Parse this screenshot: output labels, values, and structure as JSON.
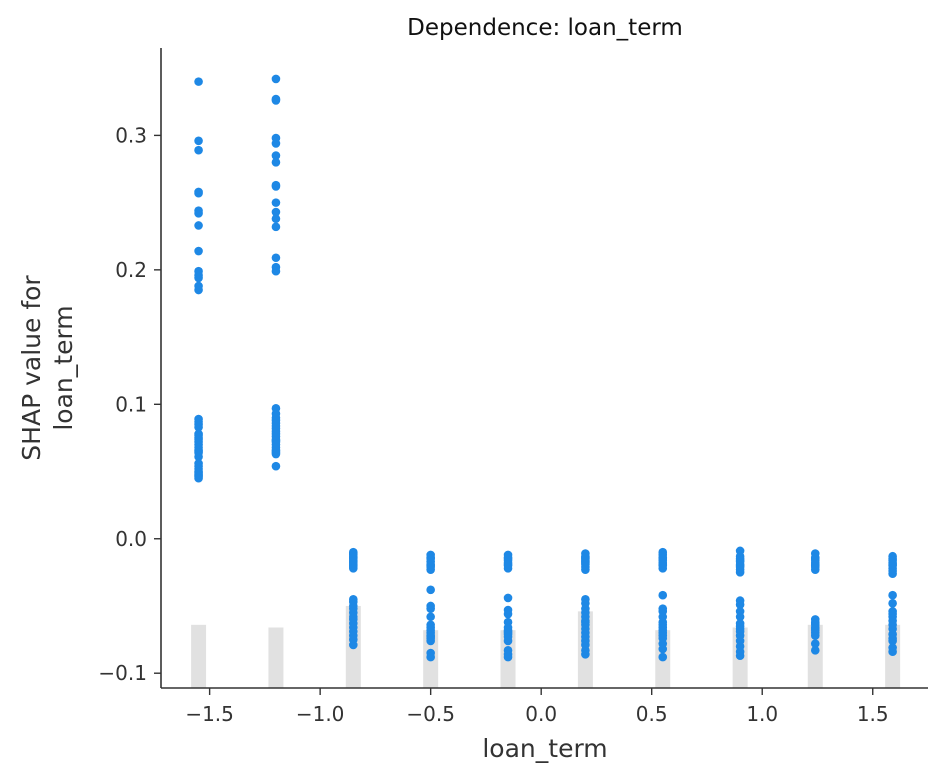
{
  "chart_data": {
    "type": "scatter",
    "title": "Dependence: loan_term",
    "xlabel": "loan_term",
    "ylabel": [
      "SHAP value for",
      "loan_term"
    ],
    "xlim": [
      -1.72,
      1.75
    ],
    "ylim": [
      -0.111,
      0.365
    ],
    "xticks": [
      -1.5,
      -1.0,
      -0.5,
      0.0,
      0.5,
      1.0,
      1.5
    ],
    "xtick_labels": [
      "−1.5",
      "−1.0",
      "−0.5",
      "0.0",
      "0.5",
      "1.0",
      "1.5"
    ],
    "yticks": [
      -0.1,
      0.0,
      0.1,
      0.2,
      0.3
    ],
    "ytick_labels": [
      "−0.1",
      "0.0",
      "0.1",
      "0.2",
      "0.3"
    ],
    "grid": false,
    "point_color": "#1e88e5",
    "hist_color": "#dcdcdc",
    "histogram": {
      "x": [
        -1.55,
        -1.2,
        -0.85,
        -0.5,
        -0.15,
        0.2,
        0.55,
        0.9,
        1.24,
        1.59
      ],
      "top": [
        -0.064,
        -0.066,
        -0.05,
        -0.068,
        -0.068,
        -0.054,
        -0.068,
        -0.066,
        -0.064,
        -0.064
      ]
    },
    "series": [
      {
        "x": [
          -1.55,
          -1.55,
          -1.55,
          -1.55,
          -1.55,
          -1.55,
          -1.55,
          -1.55,
          -1.55,
          -1.55,
          -1.55,
          -1.55,
          -1.55,
          -1.55,
          -1.55,
          -1.55,
          -1.55,
          -1.55,
          -1.55,
          -1.55,
          -1.55,
          -1.55,
          -1.55,
          -1.55,
          -1.55,
          -1.55,
          -1.55,
          -1.55,
          -1.55,
          -1.55,
          -1.55,
          -1.55,
          -1.55,
          -1.55,
          -1.55,
          -1.55,
          -1.55,
          -1.55
        ],
        "y": [
          0.34,
          0.296,
          0.289,
          0.258,
          0.257,
          0.244,
          0.242,
          0.233,
          0.214,
          0.199,
          0.196,
          0.194,
          0.188,
          0.185,
          0.089,
          0.087,
          0.085,
          0.083,
          0.078,
          0.077,
          0.075,
          0.074,
          0.072,
          0.07,
          0.068,
          0.066,
          0.065,
          0.064,
          0.056,
          0.054,
          0.052,
          0.05,
          0.049,
          0.048,
          0.047,
          0.046,
          0.045,
          0.061
        ]
      },
      {
        "x": [
          -1.2,
          -1.2,
          -1.2,
          -1.2,
          -1.2,
          -1.2,
          -1.2,
          -1.2,
          -1.2,
          -1.2,
          -1.2,
          -1.2,
          -1.2,
          -1.2,
          -1.2,
          -1.2,
          -1.2,
          -1.2,
          -1.2,
          -1.2,
          -1.2,
          -1.2,
          -1.2,
          -1.2,
          -1.2,
          -1.2,
          -1.2,
          -1.2,
          -1.2,
          -1.2,
          -1.2,
          -1.2,
          -1.2,
          -1.2,
          -1.2,
          -1.2
        ],
        "y": [
          0.342,
          0.327,
          0.326,
          0.298,
          0.294,
          0.285,
          0.28,
          0.263,
          0.262,
          0.25,
          0.243,
          0.238,
          0.232,
          0.209,
          0.202,
          0.199,
          0.097,
          0.093,
          0.09,
          0.088,
          0.086,
          0.084,
          0.082,
          0.08,
          0.078,
          0.076,
          0.074,
          0.073,
          0.072,
          0.07,
          0.068,
          0.066,
          0.065,
          0.064,
          0.063,
          0.054
        ]
      },
      {
        "x": [
          -0.85,
          -0.85,
          -0.85,
          -0.85,
          -0.85,
          -0.85,
          -0.85,
          -0.85,
          -0.85,
          -0.85,
          -0.85,
          -0.85,
          -0.85,
          -0.85,
          -0.85,
          -0.85,
          -0.85,
          -0.85,
          -0.85,
          -0.85,
          -0.85,
          -0.85,
          -0.85,
          -0.85,
          -0.85,
          -0.85
        ],
        "y": [
          -0.01,
          -0.011,
          -0.012,
          -0.013,
          -0.014,
          -0.015,
          -0.016,
          -0.017,
          -0.018,
          -0.019,
          -0.02,
          -0.021,
          -0.022,
          -0.045,
          -0.047,
          -0.05,
          -0.052,
          -0.055,
          -0.058,
          -0.06,
          -0.063,
          -0.066,
          -0.069,
          -0.072,
          -0.075,
          -0.079
        ]
      },
      {
        "x": [
          -0.5,
          -0.5,
          -0.5,
          -0.5,
          -0.5,
          -0.5,
          -0.5,
          -0.5,
          -0.5,
          -0.5,
          -0.5,
          -0.5,
          -0.5,
          -0.5,
          -0.5,
          -0.5,
          -0.5,
          -0.5,
          -0.5,
          -0.5,
          -0.5,
          -0.5
        ],
        "y": [
          -0.012,
          -0.015,
          -0.017,
          -0.019,
          -0.021,
          -0.023,
          -0.038,
          -0.05,
          -0.052,
          -0.058,
          -0.064,
          -0.066,
          -0.068,
          -0.07,
          -0.072,
          -0.074,
          -0.076,
          -0.085,
          -0.088,
          -0.02,
          -0.014,
          -0.073
        ]
      },
      {
        "x": [
          -0.15,
          -0.15,
          -0.15,
          -0.15,
          -0.15,
          -0.15,
          -0.15,
          -0.15,
          -0.15,
          -0.15,
          -0.15,
          -0.15,
          -0.15,
          -0.15,
          -0.15,
          -0.15,
          -0.15,
          -0.15,
          -0.15,
          -0.15,
          -0.15,
          -0.15
        ],
        "y": [
          -0.012,
          -0.014,
          -0.016,
          -0.018,
          -0.02,
          -0.022,
          -0.044,
          -0.053,
          -0.056,
          -0.062,
          -0.066,
          -0.068,
          -0.069,
          -0.071,
          -0.073,
          -0.076,
          -0.083,
          -0.086,
          -0.088,
          -0.015,
          -0.019,
          -0.07
        ]
      },
      {
        "x": [
          0.2,
          0.2,
          0.2,
          0.2,
          0.2,
          0.2,
          0.2,
          0.2,
          0.2,
          0.2,
          0.2,
          0.2,
          0.2,
          0.2,
          0.2,
          0.2,
          0.2,
          0.2,
          0.2,
          0.2,
          0.2,
          0.2,
          0.2,
          0.2,
          0.2
        ],
        "y": [
          -0.011,
          -0.013,
          -0.015,
          -0.016,
          -0.018,
          -0.019,
          -0.021,
          -0.023,
          -0.045,
          -0.048,
          -0.052,
          -0.055,
          -0.058,
          -0.061,
          -0.064,
          -0.067,
          -0.07,
          -0.073,
          -0.076,
          -0.079,
          -0.083,
          -0.086,
          -0.062,
          -0.017,
          -0.014
        ]
      },
      {
        "x": [
          0.55,
          0.55,
          0.55,
          0.55,
          0.55,
          0.55,
          0.55,
          0.55,
          0.55,
          0.55,
          0.55,
          0.55,
          0.55,
          0.55,
          0.55,
          0.55,
          0.55,
          0.55,
          0.55,
          0.55,
          0.55,
          0.55,
          0.55
        ],
        "y": [
          -0.01,
          -0.012,
          -0.014,
          -0.016,
          -0.018,
          -0.02,
          -0.022,
          -0.042,
          -0.052,
          -0.054,
          -0.058,
          -0.062,
          -0.066,
          -0.068,
          -0.07,
          -0.072,
          -0.078,
          -0.082,
          -0.088,
          -0.015,
          -0.019,
          -0.064,
          -0.074
        ]
      },
      {
        "x": [
          0.9,
          0.9,
          0.9,
          0.9,
          0.9,
          0.9,
          0.9,
          0.9,
          0.9,
          0.9,
          0.9,
          0.9,
          0.9,
          0.9,
          0.9,
          0.9,
          0.9,
          0.9,
          0.9,
          0.9,
          0.9,
          0.9,
          0.9
        ],
        "y": [
          -0.009,
          -0.013,
          -0.015,
          -0.017,
          -0.019,
          -0.021,
          -0.023,
          -0.025,
          -0.046,
          -0.049,
          -0.054,
          -0.058,
          -0.063,
          -0.067,
          -0.069,
          -0.072,
          -0.076,
          -0.08,
          -0.084,
          -0.087,
          -0.016,
          -0.02,
          -0.065
        ]
      },
      {
        "x": [
          1.24,
          1.24,
          1.24,
          1.24,
          1.24,
          1.24,
          1.24,
          1.24,
          1.24,
          1.24,
          1.24,
          1.24,
          1.24,
          1.24,
          1.24,
          1.24,
          1.24,
          1.24,
          1.24,
          1.24
        ],
        "y": [
          -0.011,
          -0.014,
          -0.016,
          -0.018,
          -0.019,
          -0.021,
          -0.023,
          -0.06,
          -0.062,
          -0.064,
          -0.066,
          -0.068,
          -0.07,
          -0.072,
          -0.078,
          -0.083,
          -0.015,
          -0.02,
          -0.063,
          -0.067
        ]
      },
      {
        "x": [
          1.59,
          1.59,
          1.59,
          1.59,
          1.59,
          1.59,
          1.59,
          1.59,
          1.59,
          1.59,
          1.59,
          1.59,
          1.59,
          1.59,
          1.59,
          1.59,
          1.59,
          1.59,
          1.59,
          1.59,
          1.59,
          1.59
        ],
        "y": [
          -0.013,
          -0.016,
          -0.018,
          -0.02,
          -0.022,
          -0.024,
          -0.026,
          -0.042,
          -0.048,
          -0.054,
          -0.058,
          -0.061,
          -0.064,
          -0.067,
          -0.074,
          -0.076,
          -0.081,
          -0.084,
          -0.015,
          -0.019,
          -0.056,
          -0.071
        ]
      }
    ]
  }
}
